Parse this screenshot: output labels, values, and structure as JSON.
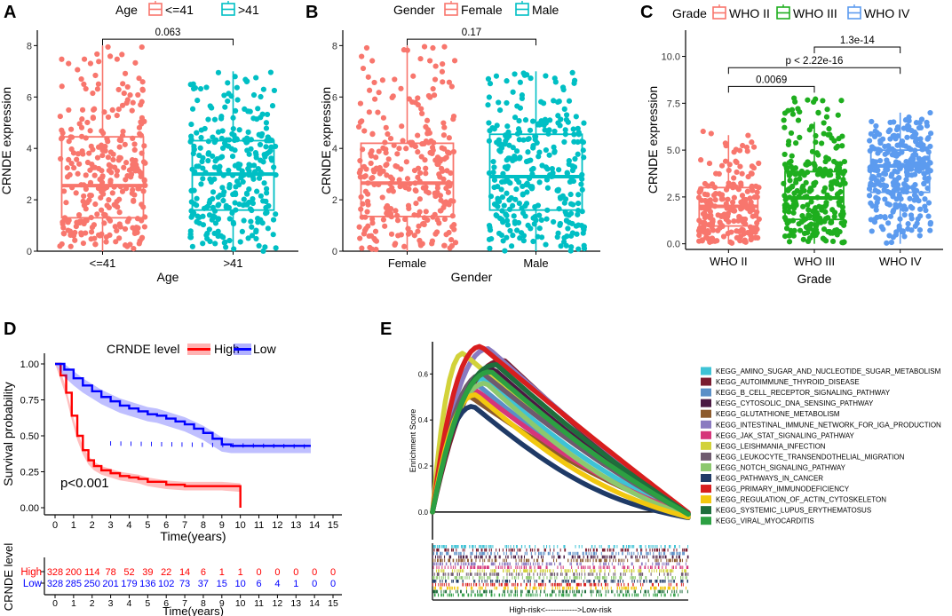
{
  "colors": {
    "young": "#F8766D",
    "old": "#00BFC4",
    "female": "#F8766D",
    "male": "#00BFC4",
    "who2": "#F8766D",
    "who3": "#1EAE1E",
    "who4": "#5C9BEF",
    "high": "#FF0000",
    "low": "#0000FF"
  },
  "chart_data": [
    {
      "panel": "A",
      "type": "box",
      "legend_title": "Age",
      "legend_labels": [
        "<=41",
        ">41"
      ],
      "categories": [
        "<=41",
        ">41"
      ],
      "xlabel": "Age",
      "ylabel": "CRNDE expression",
      "ylim": [
        0,
        8.6
      ],
      "yticks": [
        0,
        2,
        4,
        6,
        8
      ],
      "boxes": [
        {
          "q1": 1.3,
          "median": 2.55,
          "q3": 4.45,
          "wlo": 0.0,
          "whi": 8.0,
          "n": 300,
          "seed": 11,
          "ymax": 8.0
        },
        {
          "q1": 1.6,
          "median": 3.0,
          "q3": 4.3,
          "wlo": 0.0,
          "whi": 7.0,
          "n": 300,
          "seed": 23,
          "ymax": 7.0
        }
      ],
      "brackets": [
        {
          "from": 0,
          "to": 1,
          "y": 8.25,
          "label": "0.063"
        }
      ]
    },
    {
      "panel": "B",
      "type": "box",
      "legend_title": "Gender",
      "legend_labels": [
        "Female",
        "Male"
      ],
      "categories": [
        "Female",
        "Male"
      ],
      "xlabel": "Gender",
      "ylabel": "CRNDE expression",
      "ylim": [
        0,
        8.6
      ],
      "yticks": [
        0,
        2,
        4,
        6,
        8
      ],
      "boxes": [
        {
          "q1": 1.35,
          "median": 2.65,
          "q3": 4.2,
          "wlo": 0.0,
          "whi": 8.0,
          "n": 290,
          "seed": 37,
          "ymax": 8.0
        },
        {
          "q1": 1.6,
          "median": 2.9,
          "q3": 4.55,
          "wlo": 0.0,
          "whi": 7.0,
          "n": 320,
          "seed": 41,
          "ymax": 7.0
        }
      ],
      "brackets": [
        {
          "from": 0,
          "to": 1,
          "y": 8.25,
          "label": "0.17"
        }
      ]
    },
    {
      "panel": "C",
      "type": "box",
      "legend_title": "Grade",
      "legend_labels": [
        "WHO II",
        "WHO III",
        "WHO IV"
      ],
      "categories": [
        "WHO II",
        "WHO III",
        "WHO IV"
      ],
      "xlabel": "Grade",
      "ylabel": "CRNDE expression",
      "ylim": [
        -0.3,
        11.4
      ],
      "yticks": [
        0.0,
        2.5,
        5.0,
        7.5,
        10.0
      ],
      "tick_labels": [
        "0.0",
        "2.5",
        "5.0",
        "7.5",
        "10.0"
      ],
      "boxes": [
        {
          "q1": 0.95,
          "median": 2.0,
          "q3": 3.0,
          "wlo": 0.0,
          "whi": 5.8,
          "n": 210,
          "seed": 53,
          "ymax": 6.1
        },
        {
          "q1": 1.3,
          "median": 2.45,
          "q3": 3.85,
          "wlo": 0.0,
          "whi": 6.5,
          "n": 270,
          "seed": 67,
          "ymax": 8.0
        },
        {
          "q1": 2.75,
          "median": 4.15,
          "q3": 5.0,
          "wlo": 0.0,
          "whi": 7.0,
          "n": 300,
          "seed": 71,
          "ymax": 7.0
        }
      ],
      "brackets": [
        {
          "from": 0,
          "to": 1,
          "y": 8.4,
          "label": "0.0069"
        },
        {
          "from": 0,
          "to": 2,
          "y": 9.4,
          "label": "p < 2.22e-16"
        },
        {
          "from": 1,
          "to": 2,
          "y": 10.5,
          "label": "1.3e-14"
        }
      ]
    },
    {
      "panel": "D",
      "type": "line",
      "title": "CRNDE level",
      "legend_labels": [
        "High",
        "Low"
      ],
      "xlabel": "Time(years)",
      "ylabel": "Survival probability",
      "xlim": [
        0,
        15
      ],
      "ylim": [
        0,
        1
      ],
      "xticks": [
        0,
        1,
        2,
        3,
        4,
        5,
        6,
        7,
        8,
        9,
        10,
        11,
        12,
        13,
        14,
        15
      ],
      "yticks": [
        0.0,
        0.25,
        0.5,
        0.75,
        1.0
      ],
      "ytick_labels": [
        "0.00",
        "0.25",
        "0.50",
        "0.75",
        "1.00"
      ],
      "pvalue": "p<0.001",
      "series": [
        {
          "name": "High",
          "x": [
            0,
            0.3,
            0.6,
            0.9,
            1.2,
            1.5,
            1.8,
            2.1,
            2.5,
            3.0,
            3.5,
            4.0,
            4.5,
            5.0,
            6.0,
            7.0,
            8.0,
            9.0,
            10.0
          ],
          "y": [
            1.0,
            0.92,
            0.8,
            0.64,
            0.5,
            0.4,
            0.33,
            0.29,
            0.26,
            0.24,
            0.22,
            0.21,
            0.2,
            0.18,
            0.16,
            0.15,
            0.15,
            0.15,
            0.14
          ],
          "ci": 0.03,
          "end_drop": [
            10.0,
            0.0
          ]
        },
        {
          "name": "Low",
          "x": [
            0,
            0.5,
            1.0,
            1.5,
            2.0,
            2.5,
            3.0,
            3.5,
            4.0,
            4.5,
            5.0,
            5.5,
            6.0,
            6.5,
            7.0,
            7.5,
            8.0,
            8.5,
            9.0,
            9.5,
            10.0,
            11.0,
            12.0,
            13.0,
            13.8
          ],
          "y": [
            1.0,
            0.96,
            0.9,
            0.85,
            0.81,
            0.77,
            0.74,
            0.71,
            0.69,
            0.67,
            0.65,
            0.64,
            0.62,
            0.6,
            0.58,
            0.55,
            0.52,
            0.48,
            0.44,
            0.43,
            0.43,
            0.43,
            0.43,
            0.43,
            0.43
          ],
          "ci": 0.05
        }
      ],
      "risk_table": {
        "title": "CRNDE level",
        "xlabel": "Time(years)",
        "rows": [
          {
            "name": "High",
            "values": [
              "328",
              "200",
              "114",
              "78",
              "52",
              "39",
              "22",
              "14",
              "6",
              "1",
              "1",
              "0",
              "0",
              "0",
              "0",
              "0"
            ]
          },
          {
            "name": "Low",
            "values": [
              "328",
              "285",
              "250",
              "201",
              "179",
              "136",
              "102",
              "73",
              "37",
              "15",
              "10",
              "6",
              "4",
              "1",
              "0",
              "0"
            ]
          }
        ]
      }
    },
    {
      "panel": "E",
      "type": "line",
      "ylabel": "Enrichment Score",
      "xlabel": "High-risk<------------>Low-risk",
      "xlim": [
        0,
        1
      ],
      "ylim": [
        -0.12,
        0.74
      ],
      "yticks": [
        0.0,
        0.2,
        0.4,
        0.6
      ],
      "ytick_labels": [
        "0.0",
        "0.2",
        "0.4",
        "0.6"
      ],
      "series": [
        {
          "name": "KEGG_AMINO_SUGAR_AND_NUCLEOTIDE_SUGAR_METABOLISM",
          "color": "#3EC3D6",
          "peak": 0.58,
          "peak_x": 0.2,
          "end_min": -0.06
        },
        {
          "name": "KEGG_AUTOIMMUNE_THYROID_DISEASE",
          "color": "#7A1B2F",
          "peak": 0.66,
          "peak_x": 0.28,
          "end_min": -0.03
        },
        {
          "name": "KEGG_B_CELL_RECEPTOR_SIGNALING_PATHWAY",
          "color": "#5A8FC7",
          "peak": 0.55,
          "peak_x": 0.18,
          "end_min": -0.07
        },
        {
          "name": "KEGG_CYTOSOLIC_DNA_SENSING_PATHWAY",
          "color": "#4A1942",
          "peak": 0.62,
          "peak_x": 0.24,
          "end_min": -0.04
        },
        {
          "name": "KEGG_GLUTATHIONE_METABOLISM",
          "color": "#8C5A2C",
          "peak": 0.5,
          "peak_x": 0.15,
          "end_min": -0.05
        },
        {
          "name": "KEGG_INTESTINAL_IMMUNE_NETWORK_FOR_IGA_PRODUCTION",
          "color": "#8A7AC0",
          "peak": 0.71,
          "peak_x": 0.22,
          "end_min": -0.02
        },
        {
          "name": "KEGG_JAK_STAT_SIGNALING_PATHWAY",
          "color": "#D6357A",
          "peak": 0.53,
          "peak_x": 0.17,
          "end_min": -0.06
        },
        {
          "name": "KEGG_LEISHMANIA_INFECTION",
          "color": "#D2D23A",
          "peak": 0.69,
          "peak_x": 0.12,
          "end_min": -0.05
        },
        {
          "name": "KEGG_LEUKOCYTE_TRANSENDOTHELIAL_MIGRATION",
          "color": "#6E5A6E",
          "peak": 0.6,
          "peak_x": 0.2,
          "end_min": -0.04
        },
        {
          "name": "KEGG_NOTCH_SIGNALING_PATHWAY",
          "color": "#8CC86E",
          "peak": 0.56,
          "peak_x": 0.21,
          "end_min": -0.08
        },
        {
          "name": "KEGG_PATHWAYS_IN_CANCER",
          "color": "#1F3A66",
          "peak": 0.46,
          "peak_x": 0.16,
          "end_min": -0.1
        },
        {
          "name": "KEGG_PRIMARY_IMMUNODEFICIENCY",
          "color": "#D81E1E",
          "peak": 0.72,
          "peak_x": 0.19,
          "end_min": -0.01
        },
        {
          "name": "KEGG_REGULATION_OF_ACTIN_CYTOSKELETON",
          "color": "#F2C80F",
          "peak": 0.51,
          "peak_x": 0.17,
          "end_min": -0.09
        },
        {
          "name": "KEGG_SYSTEMIC_LUPUS_ERYTHEMATOSUS",
          "color": "#1E6E3C",
          "peak": 0.64,
          "peak_x": 0.25,
          "end_min": -0.03
        },
        {
          "name": "KEGG_VIRAL_MYOCARDITIS",
          "color": "#2CA042",
          "peak": 0.61,
          "peak_x": 0.23,
          "end_min": -0.04
        }
      ]
    }
  ]
}
